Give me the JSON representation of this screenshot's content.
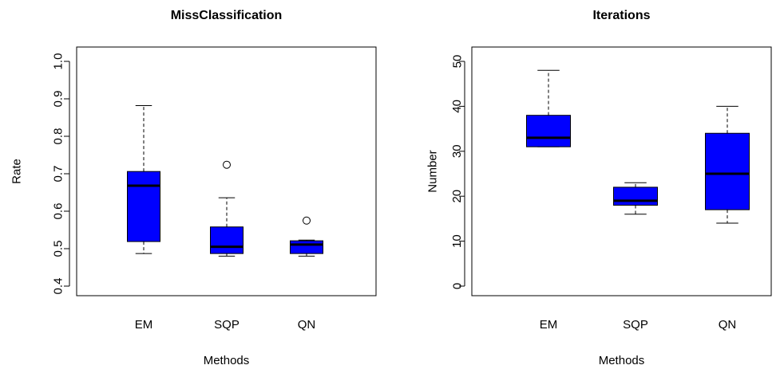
{
  "chart_data": [
    {
      "type": "boxplot",
      "title": "MissClassification",
      "xlabel": "Methods",
      "ylabel": "Rate",
      "ylim": [
        0.4,
        1.0
      ],
      "yticks": [
        0.4,
        0.5,
        0.6,
        0.7,
        0.8,
        0.9,
        1.0
      ],
      "ytick_labels": [
        "0.4",
        "0.5",
        "0.6",
        "0.7",
        "0.8",
        "0.9",
        "1.0"
      ],
      "categories": [
        "EM",
        "SQP",
        "QN"
      ],
      "box_color": "#0000ff",
      "boxes": [
        {
          "category": "EM",
          "whisker_low": 0.487,
          "q1": 0.519,
          "median": 0.668,
          "q3": 0.706,
          "whisker_high": 0.882,
          "outliers": []
        },
        {
          "category": "SQP",
          "whisker_low": 0.48,
          "q1": 0.487,
          "median": 0.505,
          "q3": 0.558,
          "whisker_high": 0.636,
          "outliers": [
            0.724
          ]
        },
        {
          "category": "QN",
          "whisker_low": 0.48,
          "q1": 0.487,
          "median": 0.511,
          "q3": 0.521,
          "whisker_high": 0.523,
          "outliers": [
            0.575
          ]
        }
      ]
    },
    {
      "type": "boxplot",
      "title": "Iterations",
      "xlabel": "Methods",
      "ylabel": "Number",
      "ylim": [
        0,
        50
      ],
      "yticks": [
        0,
        10,
        20,
        30,
        40,
        50
      ],
      "ytick_labels": [
        "0",
        "10",
        "20",
        "30",
        "40",
        "50"
      ],
      "categories": [
        "EM",
        "SQP",
        "QN"
      ],
      "box_color": "#0000ff",
      "boxes": [
        {
          "category": "EM",
          "whisker_low": 31,
          "q1": 31,
          "median": 33,
          "q3": 38,
          "whisker_high": 48,
          "outliers": []
        },
        {
          "category": "SQP",
          "whisker_low": 16,
          "q1": 18,
          "median": 19,
          "q3": 22,
          "whisker_high": 23,
          "outliers": []
        },
        {
          "category": "QN",
          "whisker_low": 14,
          "q1": 17,
          "median": 25,
          "q3": 34,
          "whisker_high": 40,
          "outliers": []
        }
      ]
    }
  ]
}
